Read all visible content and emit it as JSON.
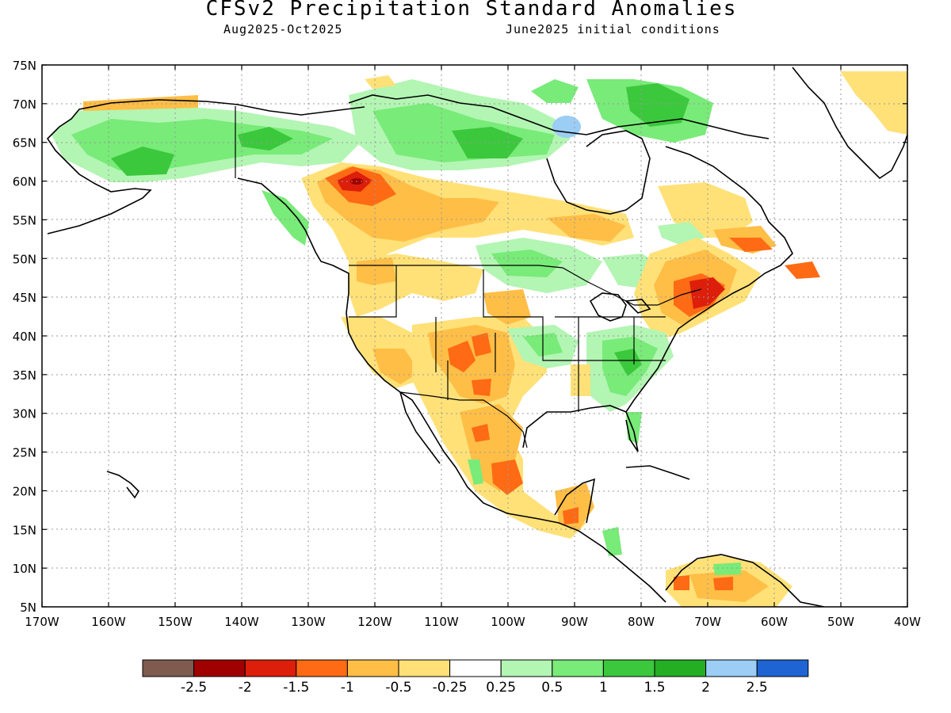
{
  "header": {
    "title": "CFSv2 Precipitation Standard Anomalies",
    "period": "Aug2025-Oct2025",
    "init": "June2025 initial conditions"
  },
  "map": {
    "lon_range": [
      -170,
      -40
    ],
    "lat_range": [
      5,
      75
    ],
    "lat_labels": [
      "75N",
      "70N",
      "65N",
      "60N",
      "55N",
      "50N",
      "45N",
      "40N",
      "35N",
      "30N",
      "25N",
      "20N",
      "15N",
      "10N",
      "5N"
    ],
    "lon_labels": [
      "170W",
      "160W",
      "150W",
      "140W",
      "130W",
      "120W",
      "110W",
      "100W",
      "90W",
      "80W",
      "70W",
      "60W",
      "50W",
      "40W"
    ]
  },
  "legend": {
    "colors": [
      "#7f5a4f",
      "#a00000",
      "#dc1e0a",
      "#ff6a14",
      "#ffbe46",
      "#ffe178",
      "#ffffff",
      "#b3f5b3",
      "#78eb78",
      "#3cc83c",
      "#24ae24",
      "#9bcdf5",
      "#1e64d2"
    ],
    "labels": [
      "-2.5",
      "-2",
      "-1.5",
      "-1",
      "-0.5",
      "-0.25",
      "0.25",
      "0.5",
      "1",
      "1.5",
      "2",
      "2.5"
    ]
  },
  "anomaly_colors": {
    "strong_dry": "#a00000",
    "dry2": "#dc1e0a",
    "dry15": "#ff6a14",
    "dry1": "#ffbe46",
    "dry05": "#ffe178",
    "wet025": "#b3f5b3",
    "wet05": "#78eb78",
    "wet1": "#3cc83c",
    "wet15": "#24ae24",
    "wet2": "#9bcdf5"
  }
}
